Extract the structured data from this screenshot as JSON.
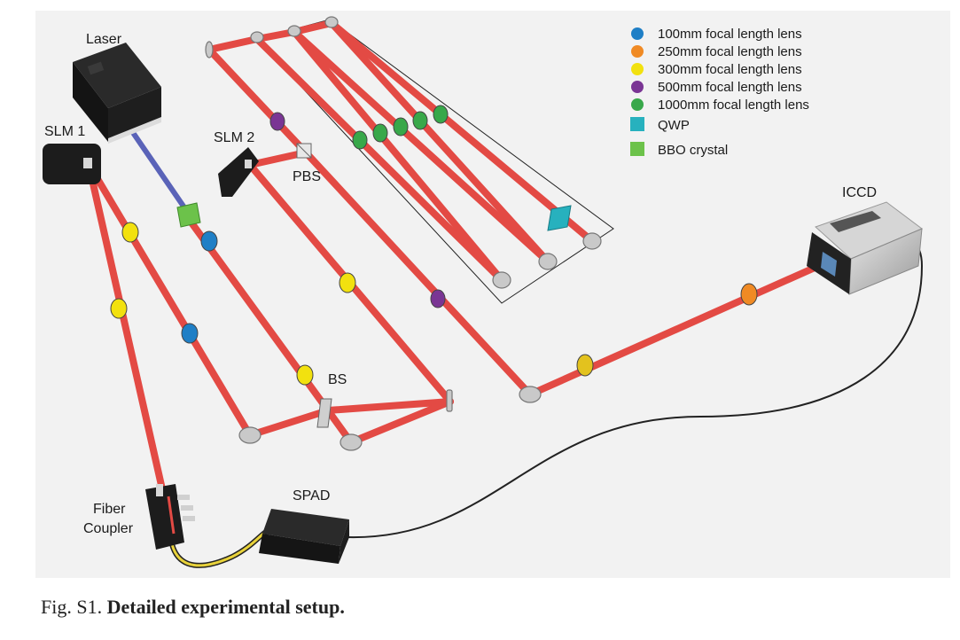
{
  "labels": {
    "laser": "Laser",
    "slm1": "SLM 1",
    "slm2": "SLM 2",
    "pbs": "PBS",
    "bs": "BS",
    "iccd": "ICCD",
    "spad": "SPAD",
    "fiber_coupler_line1": "Fiber",
    "fiber_coupler_line2": "Coupler"
  },
  "legend": [
    {
      "label": "100mm focal length lens",
      "shape": "circle",
      "color": "#1f7fc6"
    },
    {
      "label": "250mm focal length lens",
      "shape": "circle",
      "color": "#f08a24"
    },
    {
      "label": "300mm focal length lens",
      "shape": "circle",
      "color": "#f2e10f"
    },
    {
      "label": "500mm focal length lens",
      "shape": "circle",
      "color": "#7a3594"
    },
    {
      "label": "1000mm focal length lens",
      "shape": "circle",
      "color": "#38a84a"
    },
    {
      "label": "QWP",
      "shape": "square",
      "color": "#27b1be"
    },
    {
      "label": "BBO crystal",
      "shape": "square",
      "color": "#6cc24a"
    }
  ],
  "colors": {
    "beam_red": "#e34a44",
    "beam_blue": "#5a63b8",
    "mirror": "#c7c7c7",
    "device_dark": "#1c1c1c",
    "fiber_yellow": "#e8d23a"
  },
  "caption": {
    "prefix": "Fig. S1.",
    "text": "Detailed experimental setup."
  }
}
